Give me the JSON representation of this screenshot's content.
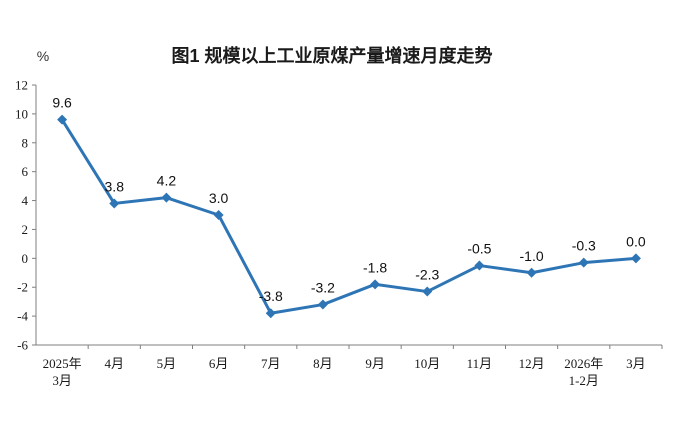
{
  "chart": {
    "title": "图1  规模以上工业原煤产量增速月度走势",
    "unit_label": "%"
  },
  "chart_data": {
    "type": "line",
    "title": "图1  规模以上工业原煤产量增速月度走势",
    "xlabel": "",
    "ylabel": "%",
    "categories": [
      "2025年\n3月",
      "4月",
      "5月",
      "6月",
      "7月",
      "8月",
      "9月",
      "10月",
      "11月",
      "12月",
      "2026年\n1-2月",
      "3月"
    ],
    "values": [
      9.6,
      3.8,
      4.2,
      3.0,
      -3.8,
      -3.2,
      -1.8,
      -2.3,
      -0.5,
      -1.0,
      -0.3,
      0.0
    ],
    "value_labels": [
      "9.6",
      "3.8",
      "4.2",
      "3.0",
      "-3.8",
      "-3.2",
      "-1.8",
      "-2.3",
      "-0.5",
      "-1.0",
      "-0.3",
      "0.0"
    ],
    "series_name": "规模以上工业原煤产量增速",
    "ylim": [
      -6,
      12
    ],
    "yticks": [
      12,
      10,
      8,
      6,
      4,
      2,
      0,
      -2,
      -4,
      -6
    ],
    "grid": false,
    "legend": "none",
    "line_color": "#2E75B6",
    "marker": "diamond",
    "axis_color": "#7f7f7f",
    "label_color": "#111111"
  }
}
